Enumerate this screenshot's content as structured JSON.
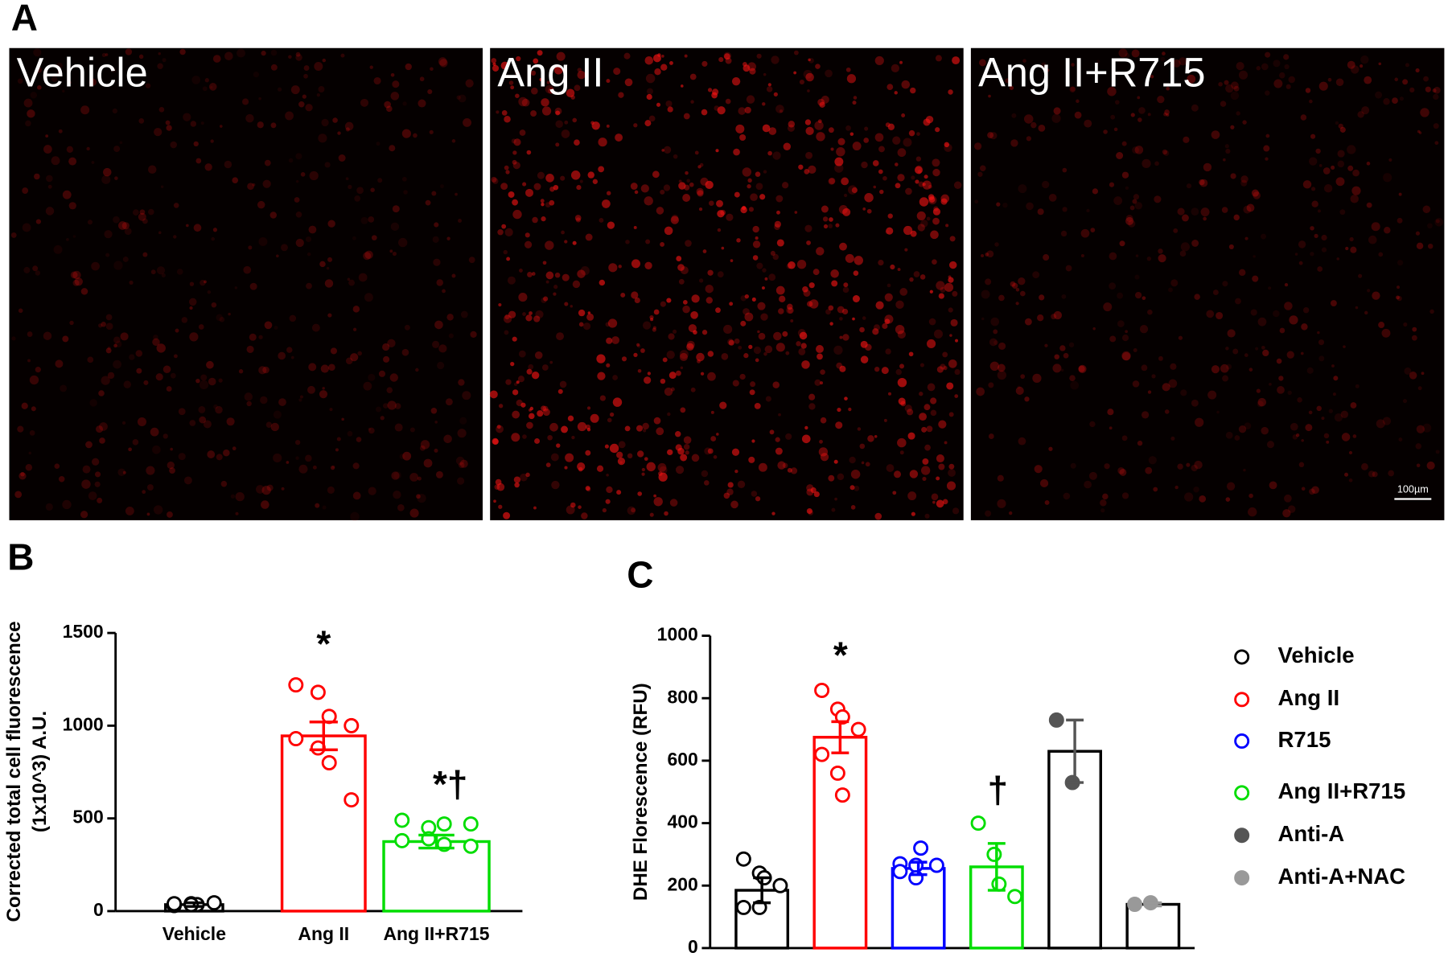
{
  "panels": [
    "A",
    "B",
    "C"
  ],
  "images": {
    "labels": [
      "Vehicle",
      "Ang II",
      "Ang II+R715"
    ],
    "scale_bar": "100µm"
  },
  "chart_data": [
    {
      "type": "bar",
      "y_label": [
        "Corrected total cell fluorescence",
        "(1x10^3) A.U."
      ],
      "categories": [
        "Vehicle",
        "Ang II",
        "Ang II+R715"
      ],
      "values": [
        35,
        945,
        375
      ],
      "errors": [
        10,
        75,
        35
      ],
      "points": [
        [
          30,
          40,
          35,
          45,
          40,
          35
        ],
        [
          1220,
          1180,
          1050,
          1000,
          930,
          880,
          800,
          600
        ],
        [
          490,
          450,
          470,
          470,
          380,
          390,
          360,
          350
        ]
      ],
      "colors": [
        "#000000",
        "#ff0000",
        "#00dd00"
      ],
      "annotations": [
        "*",
        "*†"
      ],
      "ylim": [
        0,
        1500
      ],
      "yticks": [
        0,
        500,
        1000,
        1500
      ]
    },
    {
      "type": "bar",
      "y_label": "DHE Florescence (RFU)",
      "series": [
        {
          "name": "Vehicle",
          "color": "#000000",
          "marker": "open",
          "values": [
            185
          ],
          "errors": [
            40
          ],
          "points": [
            285,
            240,
            225,
            200,
            130,
            130
          ]
        },
        {
          "name": "Ang II",
          "color": "#ff0000",
          "marker": "open",
          "values": [
            675
          ],
          "errors": [
            50
          ],
          "points": [
            825,
            765,
            740,
            700,
            620,
            560,
            490
          ]
        },
        {
          "name": "R715",
          "color": "#0000ff",
          "marker": "open",
          "values": [
            255
          ],
          "errors": [
            20
          ],
          "points": [
            270,
            265,
            320,
            265,
            245,
            225
          ]
        },
        {
          "name": "Ang II+R715",
          "color": "#00dd00",
          "marker": "open",
          "values": [
            260
          ],
          "errors": [
            75
          ],
          "points": [
            400,
            300,
            205,
            165
          ]
        },
        {
          "name": "Anti-A",
          "color": "#555555",
          "marker": "filled",
          "values": [
            630
          ],
          "errors": [
            100
          ],
          "points": [
            730,
            530
          ]
        },
        {
          "name": "Anti-A+NAC",
          "color": "#999999",
          "marker": "filled",
          "values": [
            140
          ],
          "errors": [
            5
          ],
          "points": [
            140,
            145
          ]
        }
      ],
      "annotations": [
        "*",
        "†"
      ],
      "legend": "right",
      "ylim": [
        0,
        1000
      ],
      "yticks": [
        0,
        200,
        400,
        600,
        800,
        1000
      ]
    }
  ]
}
